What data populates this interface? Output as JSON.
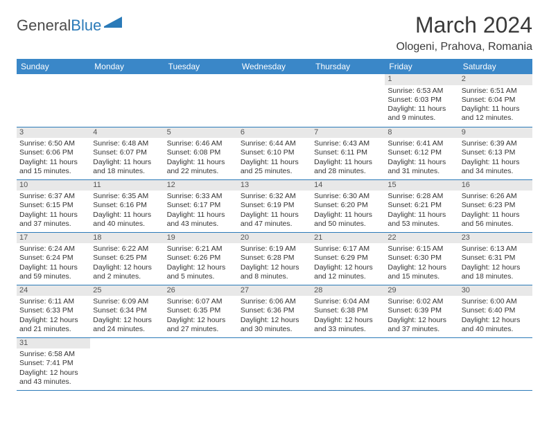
{
  "logo": {
    "word1": "General",
    "word2": "Blue"
  },
  "title": {
    "month": "March 2024",
    "location": "Ologeni, Prahova, Romania"
  },
  "colors": {
    "header_bg": "#3a87c8",
    "header_text": "#ffffff",
    "daynum_bg": "#e8e8e8",
    "border": "#2a7ab8",
    "logo_blue": "#2a7ab8"
  },
  "weekdays": [
    "Sunday",
    "Monday",
    "Tuesday",
    "Wednesday",
    "Thursday",
    "Friday",
    "Saturday"
  ],
  "first_weekday_index": 5,
  "days": [
    {
      "n": 1,
      "sunrise": "6:53 AM",
      "sunset": "6:03 PM",
      "daylight": "11 hours and 9 minutes."
    },
    {
      "n": 2,
      "sunrise": "6:51 AM",
      "sunset": "6:04 PM",
      "daylight": "11 hours and 12 minutes."
    },
    {
      "n": 3,
      "sunrise": "6:50 AM",
      "sunset": "6:06 PM",
      "daylight": "11 hours and 15 minutes."
    },
    {
      "n": 4,
      "sunrise": "6:48 AM",
      "sunset": "6:07 PM",
      "daylight": "11 hours and 18 minutes."
    },
    {
      "n": 5,
      "sunrise": "6:46 AM",
      "sunset": "6:08 PM",
      "daylight": "11 hours and 22 minutes."
    },
    {
      "n": 6,
      "sunrise": "6:44 AM",
      "sunset": "6:10 PM",
      "daylight": "11 hours and 25 minutes."
    },
    {
      "n": 7,
      "sunrise": "6:43 AM",
      "sunset": "6:11 PM",
      "daylight": "11 hours and 28 minutes."
    },
    {
      "n": 8,
      "sunrise": "6:41 AM",
      "sunset": "6:12 PM",
      "daylight": "11 hours and 31 minutes."
    },
    {
      "n": 9,
      "sunrise": "6:39 AM",
      "sunset": "6:13 PM",
      "daylight": "11 hours and 34 minutes."
    },
    {
      "n": 10,
      "sunrise": "6:37 AM",
      "sunset": "6:15 PM",
      "daylight": "11 hours and 37 minutes."
    },
    {
      "n": 11,
      "sunrise": "6:35 AM",
      "sunset": "6:16 PM",
      "daylight": "11 hours and 40 minutes."
    },
    {
      "n": 12,
      "sunrise": "6:33 AM",
      "sunset": "6:17 PM",
      "daylight": "11 hours and 43 minutes."
    },
    {
      "n": 13,
      "sunrise": "6:32 AM",
      "sunset": "6:19 PM",
      "daylight": "11 hours and 47 minutes."
    },
    {
      "n": 14,
      "sunrise": "6:30 AM",
      "sunset": "6:20 PM",
      "daylight": "11 hours and 50 minutes."
    },
    {
      "n": 15,
      "sunrise": "6:28 AM",
      "sunset": "6:21 PM",
      "daylight": "11 hours and 53 minutes."
    },
    {
      "n": 16,
      "sunrise": "6:26 AM",
      "sunset": "6:23 PM",
      "daylight": "11 hours and 56 minutes."
    },
    {
      "n": 17,
      "sunrise": "6:24 AM",
      "sunset": "6:24 PM",
      "daylight": "11 hours and 59 minutes."
    },
    {
      "n": 18,
      "sunrise": "6:22 AM",
      "sunset": "6:25 PM",
      "daylight": "12 hours and 2 minutes."
    },
    {
      "n": 19,
      "sunrise": "6:21 AM",
      "sunset": "6:26 PM",
      "daylight": "12 hours and 5 minutes."
    },
    {
      "n": 20,
      "sunrise": "6:19 AM",
      "sunset": "6:28 PM",
      "daylight": "12 hours and 8 minutes."
    },
    {
      "n": 21,
      "sunrise": "6:17 AM",
      "sunset": "6:29 PM",
      "daylight": "12 hours and 12 minutes."
    },
    {
      "n": 22,
      "sunrise": "6:15 AM",
      "sunset": "6:30 PM",
      "daylight": "12 hours and 15 minutes."
    },
    {
      "n": 23,
      "sunrise": "6:13 AM",
      "sunset": "6:31 PM",
      "daylight": "12 hours and 18 minutes."
    },
    {
      "n": 24,
      "sunrise": "6:11 AM",
      "sunset": "6:33 PM",
      "daylight": "12 hours and 21 minutes."
    },
    {
      "n": 25,
      "sunrise": "6:09 AM",
      "sunset": "6:34 PM",
      "daylight": "12 hours and 24 minutes."
    },
    {
      "n": 26,
      "sunrise": "6:07 AM",
      "sunset": "6:35 PM",
      "daylight": "12 hours and 27 minutes."
    },
    {
      "n": 27,
      "sunrise": "6:06 AM",
      "sunset": "6:36 PM",
      "daylight": "12 hours and 30 minutes."
    },
    {
      "n": 28,
      "sunrise": "6:04 AM",
      "sunset": "6:38 PM",
      "daylight": "12 hours and 33 minutes."
    },
    {
      "n": 29,
      "sunrise": "6:02 AM",
      "sunset": "6:39 PM",
      "daylight": "12 hours and 37 minutes."
    },
    {
      "n": 30,
      "sunrise": "6:00 AM",
      "sunset": "6:40 PM",
      "daylight": "12 hours and 40 minutes."
    },
    {
      "n": 31,
      "sunrise": "6:58 AM",
      "sunset": "7:41 PM",
      "daylight": "12 hours and 43 minutes."
    }
  ],
  "labels": {
    "sunrise": "Sunrise:",
    "sunset": "Sunset:",
    "daylight": "Daylight:"
  }
}
